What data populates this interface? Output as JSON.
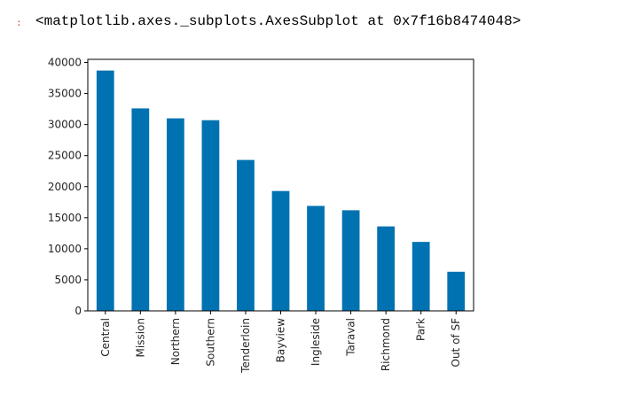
{
  "output": {
    "marker": ":",
    "repr": "<matplotlib.axes._subplots.AxesSubplot at 0x7f16b8474048>"
  },
  "chart_data": {
    "type": "bar",
    "title": "",
    "xlabel": "",
    "ylabel": "",
    "categories": [
      "Central",
      "Mission",
      "Northern",
      "Southern",
      "Tenderloin",
      "Bayview",
      "Ingleside",
      "Taraval",
      "Richmond",
      "Park",
      "Out of SF"
    ],
    "values": [
      38700,
      32600,
      31000,
      30700,
      24300,
      19300,
      16900,
      16200,
      13600,
      11100,
      6300
    ],
    "ylim": [
      0,
      40500
    ],
    "yticks": [
      0,
      5000,
      10000,
      15000,
      20000,
      25000,
      30000,
      35000,
      40000
    ],
    "bar_color": "#0072b2",
    "grid": false,
    "legend": "none"
  }
}
